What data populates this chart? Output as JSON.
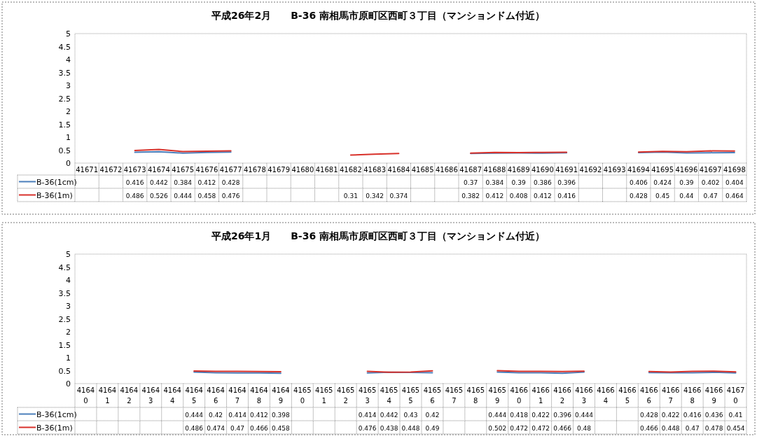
{
  "chart_data": [
    {
      "type": "line",
      "title": "平成26年2月　　B-36 南相馬市原町区西町３丁目（マンションドム付近）",
      "categories": [
        "41671",
        "41672",
        "41673",
        "41674",
        "41675",
        "41676",
        "41677",
        "41678",
        "41679",
        "41680",
        "41681",
        "41682",
        "41683",
        "41684",
        "41685",
        "41686",
        "41687",
        "41688",
        "41689",
        "41690",
        "41691",
        "41692",
        "41693",
        "41694",
        "41695",
        "41696",
        "41697",
        "41698"
      ],
      "series": [
        {
          "name": "B-36(1cm)",
          "color": "#4a7ebb",
          "values": [
            null,
            null,
            0.416,
            0.442,
            0.384,
            0.412,
            0.428,
            null,
            null,
            null,
            null,
            null,
            null,
            null,
            null,
            null,
            0.37,
            0.384,
            0.39,
            0.386,
            0.396,
            null,
            null,
            0.406,
            0.424,
            0.39,
            0.402,
            0.404
          ]
        },
        {
          "name": "B-36(1m)",
          "color": "#d8312a",
          "values": [
            null,
            null,
            0.486,
            0.526,
            0.444,
            0.458,
            0.476,
            null,
            null,
            null,
            null,
            0.31,
            0.342,
            0.374,
            null,
            null,
            0.382,
            0.412,
            0.408,
            0.412,
            0.416,
            null,
            null,
            0.428,
            0.45,
            0.44,
            0.47,
            0.464
          ]
        }
      ],
      "ylim": [
        0,
        5
      ],
      "yticks": [
        0,
        0.5,
        1,
        1.5,
        2,
        2.5,
        3,
        3.5,
        4,
        4.5,
        5
      ],
      "data_labels": true,
      "legend": "bottom left"
    },
    {
      "type": "line",
      "title": "平成26年1月　　B-36 南相馬市原町区西町３丁目（マンションドム付近）",
      "categories": [
        "41640",
        "41641",
        "41642",
        "41643",
        "41644",
        "41645",
        "41646",
        "41647",
        "41648",
        "41649",
        "41650",
        "41651",
        "41652",
        "41653",
        "41654",
        "41655",
        "41656",
        "41657",
        "41658",
        "41659",
        "41660",
        "41661",
        "41662",
        "41663",
        "41664",
        "41665",
        "41666",
        "41667",
        "41668",
        "41669",
        "41670"
      ],
      "series": [
        {
          "name": "B-36(1cm)",
          "color": "#4a7ebb",
          "values": [
            null,
            null,
            null,
            null,
            null,
            0.444,
            0.42,
            0.414,
            0.412,
            0.398,
            null,
            null,
            null,
            0.414,
            0.442,
            0.43,
            0.42,
            null,
            null,
            0.444,
            0.418,
            0.422,
            0.396,
            0.444,
            null,
            null,
            0.428,
            0.422,
            0.416,
            0.436,
            0.41
          ]
        },
        {
          "name": "B-36(1m)",
          "color": "#d8312a",
          "values": [
            null,
            null,
            null,
            null,
            null,
            0.486,
            0.474,
            0.47,
            0.466,
            0.458,
            null,
            null,
            null,
            0.476,
            0.438,
            0.448,
            0.49,
            null,
            null,
            0.502,
            0.472,
            0.472,
            0.466,
            0.48,
            null,
            null,
            0.466,
            0.448,
            0.47,
            0.478,
            0.454
          ]
        }
      ],
      "ylim": [
        0,
        5
      ],
      "yticks": [
        0,
        0.5,
        1,
        1.5,
        2,
        2.5,
        3,
        3.5,
        4,
        4.5,
        5
      ],
      "data_labels": true,
      "legend": "bottom left"
    }
  ]
}
